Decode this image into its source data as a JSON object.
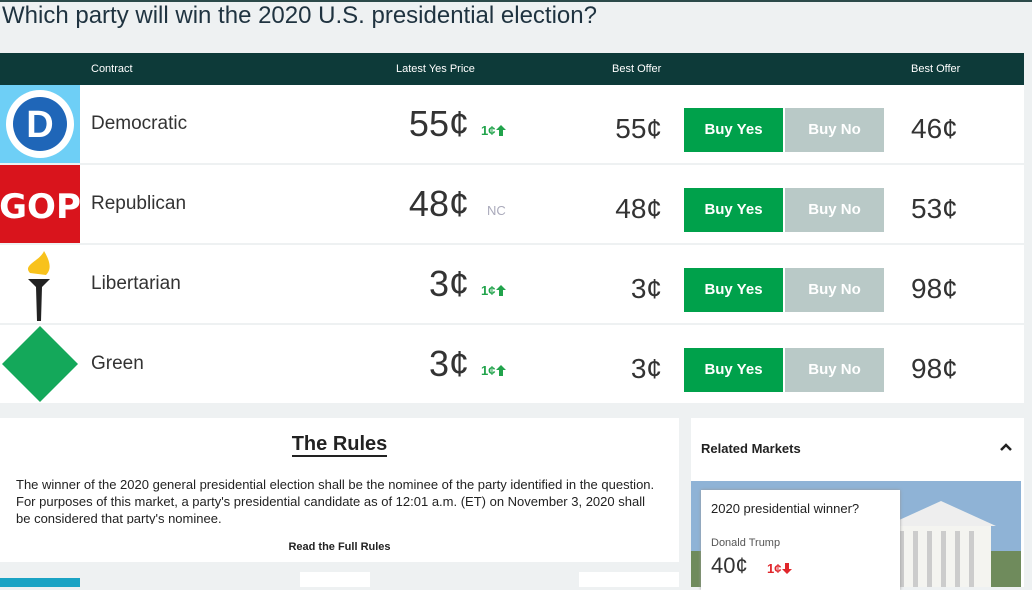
{
  "header": {
    "title": "Which party will win the 2020 U.S. presidential election?"
  },
  "table": {
    "columns": [
      "Contract",
      "Latest Yes Price",
      "Best Offer",
      "Best Offer"
    ],
    "rows": [
      {
        "logo": "D",
        "logo_color": "#6ecff6",
        "name": "Democratic",
        "price": "55¢",
        "change": "1¢",
        "trend": "up",
        "yes_offer": "55¢",
        "buy_yes": "Buy Yes",
        "buy_no": "Buy No",
        "no_offer": "46¢"
      },
      {
        "logo": "GOP",
        "logo_color": "#d9141c",
        "name": "Republican",
        "price": "48¢",
        "change": "NC",
        "trend": "none",
        "yes_offer": "48¢",
        "buy_yes": "Buy Yes",
        "buy_no": "Buy No",
        "no_offer": "53¢"
      },
      {
        "logo": "torch",
        "logo_color": "#ffffff",
        "name": "Libertarian",
        "price": "3¢",
        "change": "1¢",
        "trend": "up",
        "yes_offer": "3¢",
        "buy_yes": "Buy Yes",
        "buy_no": "Buy No",
        "no_offer": "98¢"
      },
      {
        "logo": "diamond",
        "logo_color": "#ffffff",
        "name": "Green",
        "price": "3¢",
        "change": "1¢",
        "trend": "up",
        "yes_offer": "3¢",
        "buy_yes": "Buy Yes",
        "buy_no": "Buy No",
        "no_offer": "98¢"
      }
    ]
  },
  "rules": {
    "title": "The Rules",
    "text": "The winner of the 2020 general presidential election shall be the nominee of the party identified in the question. For purposes of this market, a party's presidential candidate as of 12:01 a.m. (ET) on November 3, 2020 shall be considered that party's nominee.",
    "link": "Read the Full Rules"
  },
  "related": {
    "title": "Related Markets",
    "card": {
      "title": "2020 presidential winner?",
      "contract": "Donald Trump",
      "price": "40¢",
      "change": "1¢",
      "trend": "down"
    }
  }
}
